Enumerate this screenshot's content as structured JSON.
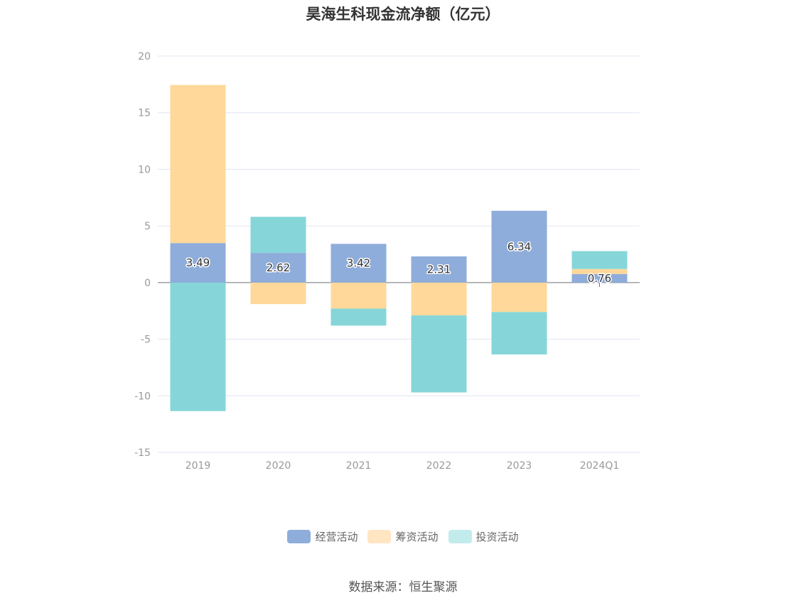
{
  "chart_data": {
    "type": "bar",
    "stacked": true,
    "title": "昊海生科现金流净额（亿元）",
    "categories": [
      "2019",
      "2020",
      "2021",
      "2022",
      "2023",
      "2024Q1"
    ],
    "series": [
      {
        "name": "经营活动",
        "color": "#8EADDB",
        "values": [
          3.49,
          2.62,
          3.42,
          2.31,
          6.34,
          0.76
        ]
      },
      {
        "name": "筹资活动",
        "color": "#FFD89A",
        "values": [
          13.96,
          -1.9,
          -2.3,
          -2.9,
          -2.6,
          0.44
        ]
      },
      {
        "name": "投资活动",
        "color": "#86D6D9",
        "values": [
          -11.35,
          3.19,
          -1.5,
          -6.8,
          -3.75,
          1.58
        ]
      }
    ],
    "data_labels": [
      "3.49",
      "2.62",
      "3.42",
      "2.31",
      "6.34",
      "0.76"
    ],
    "y_ticks": [
      "20",
      "15",
      "10",
      "5",
      "0",
      "-5",
      "-10",
      "-15"
    ],
    "ylim": [
      -15,
      20
    ],
    "grid": true,
    "legend_position": "bottom"
  },
  "legend": {
    "items": [
      {
        "label": "经营活动",
        "color": "#8EADDB"
      },
      {
        "label": "筹资活动",
        "color": "#FFE5C2"
      },
      {
        "label": "投资活动",
        "color": "#C2EBEC"
      }
    ]
  },
  "source": "数据来源：恒生聚源"
}
